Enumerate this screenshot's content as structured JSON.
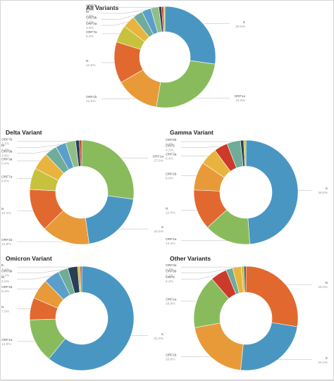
{
  "colors": {
    "S": "#4a96c2",
    "ORF1a": "#89bb5c",
    "ORF1b": "#e89a39",
    "N": "#e1692f",
    "ORF7a": "#c7c23d",
    "ORF3a": "#e9b43e",
    "M": "#5a9fc9",
    "ORF9b": "#6fac9a",
    "ORF6": "#cc3a29",
    "ORF7b": "#8fbf86",
    "E": "#2a3f55"
  },
  "chart_data": [
    {
      "type": "pie",
      "title": "All Variants",
      "slices": [
        {
          "label": "S",
          "pct_text": "26.6%",
          "value": 26.6
        },
        {
          "label": "ORF1a",
          "pct_text": "24.9%",
          "value": 24.9
        },
        {
          "label": "ORF1b",
          "pct_text": "13.6%",
          "value": 13.6
        },
        {
          "label": "N",
          "pct_text": "12.9%",
          "value": 12.9
        },
        {
          "label": "ORF7a",
          "pct_text": "5.4%",
          "value": 5.4
        },
        {
          "label": "ORF3a",
          "pct_text": "3.9%",
          "value": 3.9
        },
        {
          "label": "ORF9b",
          "pct_text": "3.1%",
          "value": 3.1
        },
        {
          "label": "M",
          "pct_text": "2.9%",
          "value": 2.9
        },
        {
          "label": "ORF7b",
          "pct_text": "2.5%",
          "value": 2.5
        },
        {
          "label": "",
          "pct_text": "",
          "value": 0.9
        },
        {
          "label": "",
          "pct_text": "",
          "value": 0.6
        },
        {
          "label": "",
          "pct_text": "",
          "value": 0.4
        }
      ]
    },
    {
      "type": "pie",
      "title": "Delta Variant",
      "slices": [
        {
          "label": "ORF1a",
          "pct_text": "27.0%",
          "value": 27.0
        },
        {
          "label": "S",
          "pct_text": "20.5%",
          "value": 20.5
        },
        {
          "label": "ORF1b",
          "pct_text": "14.8%",
          "value": 14.8
        },
        {
          "label": "N",
          "pct_text": "13.2%",
          "value": 13.2
        },
        {
          "label": "ORF7a",
          "pct_text": "6.6%",
          "value": 6.6
        },
        {
          "label": "ORF3a",
          "pct_text": "5.4%",
          "value": 5.4
        },
        {
          "label": "ORF9b",
          "pct_text": "3.8%",
          "value": 3.8
        },
        {
          "label": "M",
          "pct_text": "3.2%",
          "value": 3.2
        },
        {
          "label": "ORF7b",
          "pct_text": "3.1%",
          "value": 3.1
        },
        {
          "label": "",
          "pct_text": "",
          "value": 1.2
        },
        {
          "label": "",
          "pct_text": "",
          "value": 0.7
        }
      ]
    },
    {
      "type": "pie",
      "title": "Gamma Variant",
      "slices": [
        {
          "label": "S",
          "pct_text": "48.8%",
          "value": 48.8
        },
        {
          "label": "ORF1a",
          "pct_text": "14.4%",
          "value": 14.4
        },
        {
          "label": "N",
          "pct_text": "12.5%",
          "value": 12.5
        },
        {
          "label": "ORF1b",
          "pct_text": "8.8%",
          "value": 8.8
        },
        {
          "label": "ORF3a",
          "pct_text": "5.4%",
          "value": 5.4
        },
        {
          "label": "ORF6",
          "pct_text": "4.2%",
          "value": 4.2
        },
        {
          "label": "ORF9b",
          "pct_text": "4.2%",
          "value": 4.2
        },
        {
          "label": "",
          "pct_text": "",
          "value": 1.0
        },
        {
          "label": "",
          "pct_text": "",
          "value": 0.7
        }
      ]
    },
    {
      "type": "pie",
      "title": "Omicron Variant",
      "slices": [
        {
          "label": "S",
          "pct_text": "61.9%",
          "value": 61.9
        },
        {
          "label": "ORF1a",
          "pct_text": "13.9%",
          "value": 13.9
        },
        {
          "label": "N",
          "pct_text": "7.0%",
          "value": 7.0
        },
        {
          "label": "ORF1b",
          "pct_text": "6.4%",
          "value": 6.4
        },
        {
          "label": "M",
          "pct_text": "5.0%",
          "value": 5.0
        },
        {
          "label": "ORF9b",
          "pct_text": "3.1%",
          "value": 3.1
        },
        {
          "label": "E",
          "pct_text": "3.1%",
          "value": 3.1
        },
        {
          "label": "",
          "pct_text": "",
          "value": 0.8
        },
        {
          "label": "",
          "pct_text": "",
          "value": 0.5
        }
      ]
    },
    {
      "type": "pie",
      "title": "Other Variants",
      "slices": [
        {
          "label": "N",
          "pct_text": "28.0%",
          "value": 28.0
        },
        {
          "label": "S",
          "pct_text": "24.4%",
          "value": 24.4
        },
        {
          "label": "ORF1b",
          "pct_text": "20.8%",
          "value": 20.8
        },
        {
          "label": "ORF1a",
          "pct_text": "16.8%",
          "value": 16.8
        },
        {
          "label": "ORF6",
          "pct_text": "5.2%",
          "value": 5.2
        },
        {
          "label": "ORF9b",
          "pct_text": "2.1%",
          "value": 2.1
        },
        {
          "label": "ORF3a",
          "pct_text": "2.7%",
          "value": 2.7
        },
        {
          "label": "",
          "pct_text": "",
          "value": 0.9
        },
        {
          "label": "",
          "pct_text": "",
          "value": 0.6
        }
      ]
    }
  ],
  "slice_color_keys": [
    [
      "S",
      "ORF1a",
      "ORF1b",
      "N",
      "ORF7a",
      "ORF3a",
      "ORF9b",
      "M",
      "ORF7b",
      "E",
      "ORF6",
      "ORF7a"
    ],
    [
      "ORF1a",
      "S",
      "ORF1b",
      "N",
      "ORF7a",
      "ORF3a",
      "ORF9b",
      "M",
      "ORF7b",
      "E",
      "ORF6"
    ],
    [
      "S",
      "ORF1a",
      "N",
      "ORF1b",
      "ORF3a",
      "ORF6",
      "ORF9b",
      "E",
      "ORF7a"
    ],
    [
      "S",
      "ORF1a",
      "N",
      "ORF1b",
      "M",
      "ORF9b",
      "E",
      "ORF7a",
      "ORF6"
    ],
    [
      "N",
      "S",
      "ORF1b",
      "ORF1a",
      "ORF6",
      "ORF9b",
      "ORF3a",
      "ORF7a",
      "E"
    ]
  ]
}
